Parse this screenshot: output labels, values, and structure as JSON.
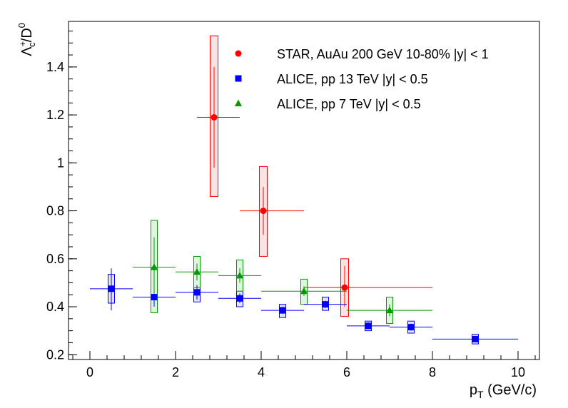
{
  "chart_data": {
    "type": "scatter",
    "xlabel_main": "p",
    "xlabel_sub": "T",
    "xlabel_rest": " (GeV/c)",
    "ylabel_lambda": "Λ",
    "ylabel_sup": "+",
    "ylabel_sub": "c",
    "ylabel_rest": "/D",
    "ylabel_sup2": "0",
    "xlim": [
      -0.5,
      10.5
    ],
    "ylim": [
      0.18,
      1.59
    ],
    "x_ticks": [
      0,
      2,
      4,
      6,
      8,
      10
    ],
    "x_tick_labels": [
      "0",
      "2",
      "4",
      "6",
      "8",
      "10"
    ],
    "y_ticks": [
      0.2,
      0.4,
      0.6,
      0.8,
      1.0,
      1.2,
      1.4
    ],
    "y_tick_labels": [
      "0.2",
      "0.4",
      "0.6",
      "0.8",
      "1",
      "1.2",
      "1.4"
    ],
    "legend_position": "top-right",
    "series": [
      {
        "name": "STAR, AuAu 200 GeV 10-80% |y| < 1",
        "color": "#ff0000",
        "fill": "#fbe3e3",
        "marker": "circle",
        "points": [
          {
            "x": 2.9,
            "y": 1.19,
            "xlo": 2.5,
            "xhi": 3.5,
            "ylo": 0.98,
            "yhi": 1.4,
            "sys_lo": 0.86,
            "sys_hi": 1.53
          },
          {
            "x": 4.05,
            "y": 0.8,
            "xlo": 3.5,
            "xhi": 5.0,
            "ylo": 0.7,
            "yhi": 0.9,
            "sys_lo": 0.61,
            "sys_hi": 0.985
          },
          {
            "x": 5.95,
            "y": 0.48,
            "xlo": 5.0,
            "xhi": 8.0,
            "ylo": 0.4,
            "yhi": 0.57,
            "sys_lo": 0.36,
            "sys_hi": 0.6
          }
        ]
      },
      {
        "name": "ALICE, pp 13 TeV |y| < 0.5",
        "color": "#0000ff",
        "fill": "#e3e3fb",
        "marker": "square",
        "points": [
          {
            "x": 0.5,
            "y": 0.475,
            "xlo": 0.0,
            "xhi": 1.0,
            "ylo": 0.385,
            "yhi": 0.56,
            "sys_lo": 0.415,
            "sys_hi": 0.535
          },
          {
            "x": 1.5,
            "y": 0.44,
            "xlo": 1.0,
            "xhi": 2.0,
            "ylo": 0.4,
            "yhi": 0.48,
            "sys_lo": 0.405,
            "sys_hi": 0.475
          },
          {
            "x": 2.5,
            "y": 0.46,
            "xlo": 2.0,
            "xhi": 3.0,
            "ylo": 0.43,
            "yhi": 0.49,
            "sys_lo": 0.42,
            "sys_hi": 0.495
          },
          {
            "x": 3.5,
            "y": 0.435,
            "xlo": 3.0,
            "xhi": 4.0,
            "ylo": 0.415,
            "yhi": 0.455,
            "sys_lo": 0.4,
            "sys_hi": 0.465
          },
          {
            "x": 4.5,
            "y": 0.385,
            "xlo": 4.0,
            "xhi": 5.0,
            "ylo": 0.37,
            "yhi": 0.4,
            "sys_lo": 0.355,
            "sys_hi": 0.41
          },
          {
            "x": 5.5,
            "y": 0.41,
            "xlo": 5.0,
            "xhi": 6.0,
            "ylo": 0.395,
            "yhi": 0.425,
            "sys_lo": 0.385,
            "sys_hi": 0.44
          },
          {
            "x": 6.5,
            "y": 0.32,
            "xlo": 6.0,
            "xhi": 7.0,
            "ylo": 0.31,
            "yhi": 0.335,
            "sys_lo": 0.3,
            "sys_hi": 0.34
          },
          {
            "x": 7.5,
            "y": 0.315,
            "xlo": 7.0,
            "xhi": 8.0,
            "ylo": 0.3,
            "yhi": 0.33,
            "sys_lo": 0.29,
            "sys_hi": 0.34
          },
          {
            "x": 9.0,
            "y": 0.265,
            "xlo": 8.0,
            "xhi": 10.0,
            "ylo": 0.255,
            "yhi": 0.275,
            "sys_lo": 0.245,
            "sys_hi": 0.285
          }
        ]
      },
      {
        "name": "ALICE, pp 7 TeV |y| < 0.5",
        "color": "#009900",
        "fill": "#e0f5e0",
        "marker": "triangle",
        "points": [
          {
            "x": 1.5,
            "y": 0.565,
            "xlo": 1.0,
            "xhi": 2.0,
            "ylo": 0.44,
            "yhi": 0.69,
            "sys_lo": 0.375,
            "sys_hi": 0.76
          },
          {
            "x": 2.5,
            "y": 0.545,
            "xlo": 2.0,
            "xhi": 3.0,
            "ylo": 0.51,
            "yhi": 0.58,
            "sys_lo": 0.48,
            "sys_hi": 0.61
          },
          {
            "x": 3.5,
            "y": 0.53,
            "xlo": 3.0,
            "xhi": 4.0,
            "ylo": 0.5,
            "yhi": 0.56,
            "sys_lo": 0.465,
            "sys_hi": 0.595
          },
          {
            "x": 5.0,
            "y": 0.465,
            "xlo": 4.0,
            "xhi": 6.0,
            "ylo": 0.445,
            "yhi": 0.485,
            "sys_lo": 0.41,
            "sys_hi": 0.515
          },
          {
            "x": 7.0,
            "y": 0.385,
            "xlo": 6.0,
            "xhi": 8.0,
            "ylo": 0.36,
            "yhi": 0.41,
            "sys_lo": 0.33,
            "sys_hi": 0.44
          }
        ]
      }
    ]
  }
}
